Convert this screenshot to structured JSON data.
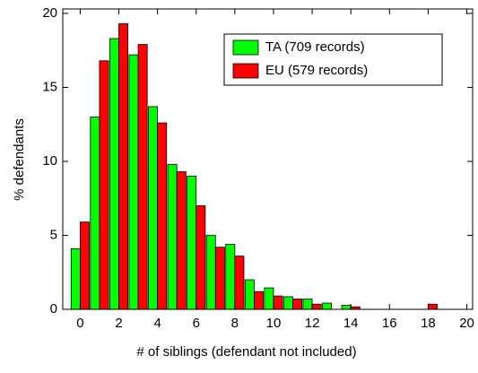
{
  "chart_data": {
    "type": "bar",
    "x_label": "# of siblings (defendant not included)",
    "y_label": "% defendants",
    "x": [
      0,
      1,
      2,
      3,
      4,
      5,
      6,
      7,
      8,
      9,
      10,
      11,
      12,
      13,
      14,
      15,
      16,
      17,
      18
    ],
    "series": [
      {
        "name": "TA (709 records)",
        "color": "#00ff00",
        "values": [
          4.1,
          13.0,
          18.3,
          17.2,
          13.7,
          9.8,
          9.0,
          5.0,
          4.4,
          2.0,
          1.45,
          0.85,
          0.7,
          0.42,
          0.28,
          0,
          0,
          0,
          0
        ]
      },
      {
        "name": "EU (579 records)",
        "color": "#ff0000",
        "values": [
          5.9,
          16.8,
          19.3,
          17.9,
          12.6,
          9.3,
          7.0,
          4.2,
          3.6,
          1.2,
          0.9,
          0.7,
          0.35,
          0,
          0.17,
          0,
          0,
          0,
          0.35
        ]
      }
    ],
    "xlim": [
      -0.9,
      20.3
    ],
    "xticks": [
      0,
      2,
      4,
      6,
      8,
      10,
      12,
      14,
      16,
      18,
      20
    ],
    "ylim": [
      0,
      20.3
    ],
    "yticks": [
      0,
      5,
      10,
      15,
      20
    ],
    "legend": "upper right"
  }
}
